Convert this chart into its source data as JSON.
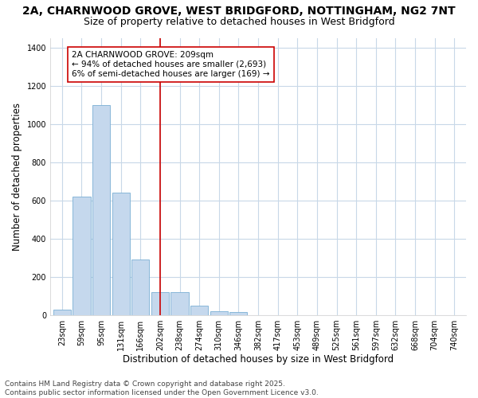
{
  "title_line1": "2A, CHARNWOOD GROVE, WEST BRIDGFORD, NOTTINGHAM, NG2 7NT",
  "title_line2": "Size of property relative to detached houses in West Bridgford",
  "xlabel": "Distribution of detached houses by size in West Bridgford",
  "ylabel": "Number of detached properties",
  "bar_labels": [
    "23sqm",
    "59sqm",
    "95sqm",
    "131sqm",
    "166sqm",
    "202sqm",
    "238sqm",
    "274sqm",
    "310sqm",
    "346sqm",
    "382sqm",
    "417sqm",
    "453sqm",
    "489sqm",
    "525sqm",
    "561sqm",
    "597sqm",
    "632sqm",
    "668sqm",
    "704sqm",
    "740sqm"
  ],
  "bar_heights": [
    30,
    620,
    1100,
    640,
    290,
    120,
    120,
    50,
    20,
    15,
    0,
    0,
    0,
    0,
    0,
    0,
    0,
    0,
    0,
    0,
    0
  ],
  "bar_color": "#c5d8ed",
  "bar_edge_color": "#7aafd4",
  "vline_x_idx": 5,
  "vline_color": "#cc0000",
  "annotation_text": "2A CHARNWOOD GROVE: 209sqm\n← 94% of detached houses are smaller (2,693)\n6% of semi-detached houses are larger (169) →",
  "annotation_box_color": "#ffffff",
  "annotation_box_edge": "#cc0000",
  "ylim": [
    0,
    1450
  ],
  "yticks": [
    0,
    200,
    400,
    600,
    800,
    1000,
    1200,
    1400
  ],
  "fig_bg_color": "#ffffff",
  "plot_bg_color": "#ffffff",
  "grid_color": "#c8d8e8",
  "footer_line1": "Contains HM Land Registry data © Crown copyright and database right 2025.",
  "footer_line2": "Contains public sector information licensed under the Open Government Licence v3.0.",
  "title_fontsize": 10,
  "subtitle_fontsize": 9,
  "axis_label_fontsize": 8.5,
  "tick_fontsize": 7,
  "footer_fontsize": 6.5,
  "annotation_fontsize": 7.5
}
